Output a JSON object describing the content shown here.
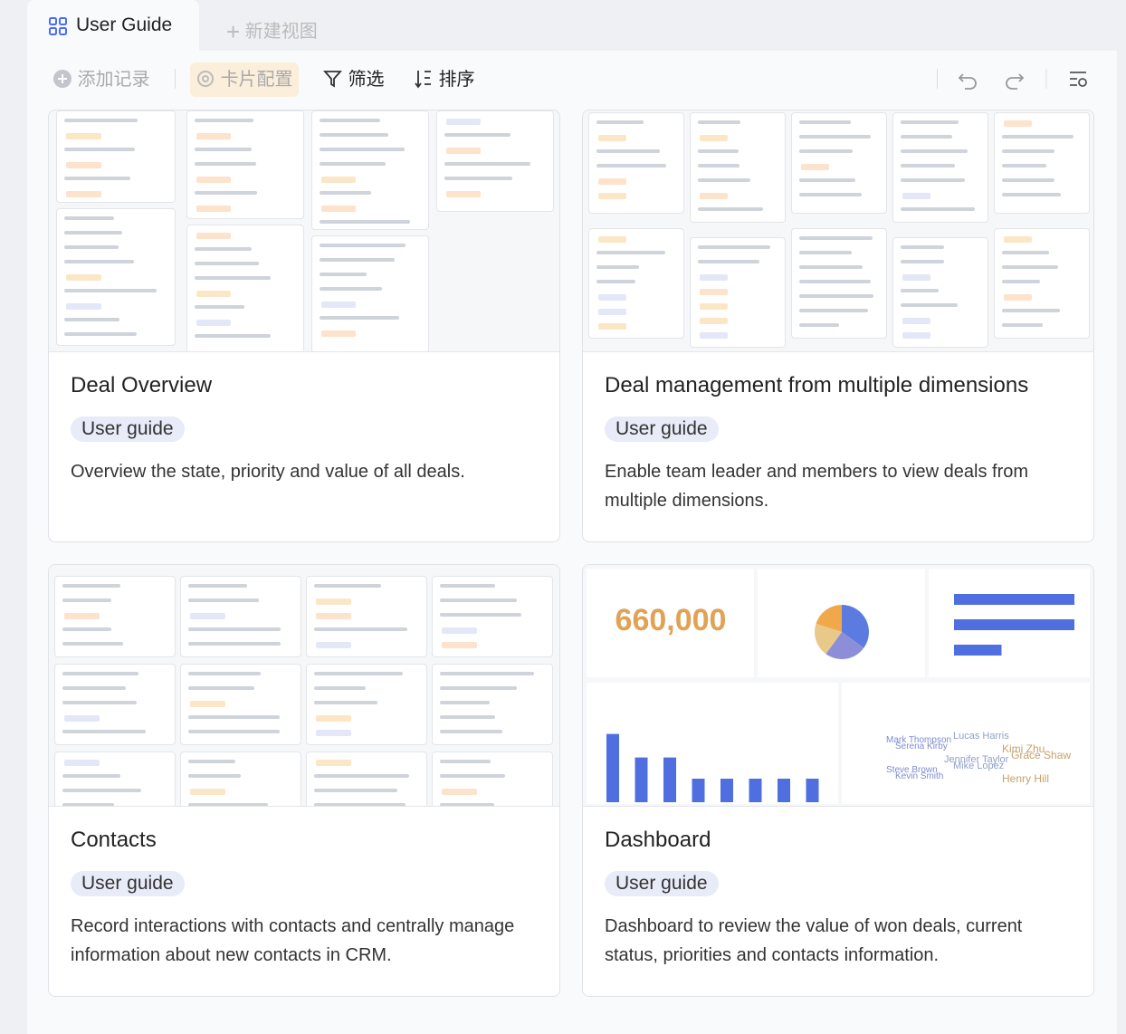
{
  "tabs": [
    {
      "label": "User Guide"
    },
    {
      "label": "新建视图"
    }
  ],
  "toolbar": {
    "buttons": [
      "添加记录",
      "卡片配置",
      "筛选",
      "排序"
    ]
  },
  "cards": [
    {
      "title": "Deal Overview",
      "tag": "User guide",
      "description": "Overview the state, priority and value of all deals."
    },
    {
      "title": "Deal management from multiple dimensions",
      "tag": "User guide",
      "description": "Enable team leader and members to view deals from multiple dimensions."
    },
    {
      "title": "Contacts",
      "tag": "User guide",
      "description": "Record interactions with contacts and centrally manage information about new contacts in CRM."
    },
    {
      "title": "Dashboard",
      "tag": "User guide",
      "description": "Dashboard to review the value of won deals, current status, priorities and contacts information.",
      "preview": {
        "big_number": "660,000",
        "pie": {
          "values": [
            35,
            25,
            20,
            20
          ],
          "colors": [
            "#5b7be0",
            "#8c8fd8",
            "#e9c98a",
            "#f0a84a"
          ]
        },
        "hbars": {
          "values": [
            7.6,
            7.6,
            3.0
          ],
          "xlim": [
            0,
            8
          ],
          "color": "#4f6fe0"
        },
        "vbars": {
          "values": [
            2.9,
            1.9,
            1.9,
            1,
            1,
            1,
            1,
            1
          ],
          "ylim": [
            0,
            3
          ],
          "color": "#4f6fe0"
        },
        "word_cloud": [
          "Mark Thompson",
          "Lucas Harris",
          "Kimi Zhu",
          "Serena Kirby",
          "Jennifer Taylor",
          "Grace Shaw",
          "Steve Brown",
          "Mike Lopez",
          "Henry Hill",
          "Kevin Smith"
        ]
      }
    }
  ]
}
